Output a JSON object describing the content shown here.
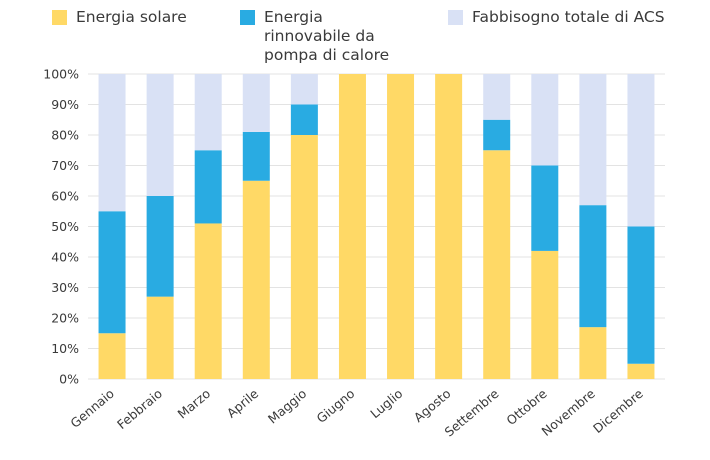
{
  "chart_data": {
    "type": "bar",
    "stacked": true,
    "title": "",
    "xlabel": "",
    "ylabel": "",
    "ylim": [
      0,
      100
    ],
    "yticks": [
      "0%",
      "10%",
      "20%",
      "30%",
      "40%",
      "50%",
      "60%",
      "70%",
      "80%",
      "90%",
      "100%"
    ],
    "categories": [
      "Gennaio",
      "Febbraio",
      "Marzo",
      "Aprile",
      "Maggio",
      "Giugno",
      "Luglio",
      "Agosto",
      "Settembre",
      "Ottobre",
      "Novembre",
      "Dicembre"
    ],
    "series": [
      {
        "name": "Energia solare",
        "color": "#FFD966",
        "values": [
          15,
          27,
          51,
          65,
          80,
          100,
          100,
          100,
          75,
          42,
          17,
          5
        ]
      },
      {
        "name": "Energia rinnovabile da pompa di calore",
        "color": "#29ABE2",
        "values": [
          40,
          33,
          24,
          16,
          10,
          0,
          0,
          0,
          10,
          28,
          40,
          45
        ]
      },
      {
        "name": "Fabbisogno totale di ACS",
        "color": "#D9E1F5",
        "values": [
          45,
          40,
          25,
          19,
          10,
          0,
          0,
          0,
          15,
          30,
          43,
          50
        ]
      }
    ],
    "grid": true,
    "legend": "top"
  }
}
